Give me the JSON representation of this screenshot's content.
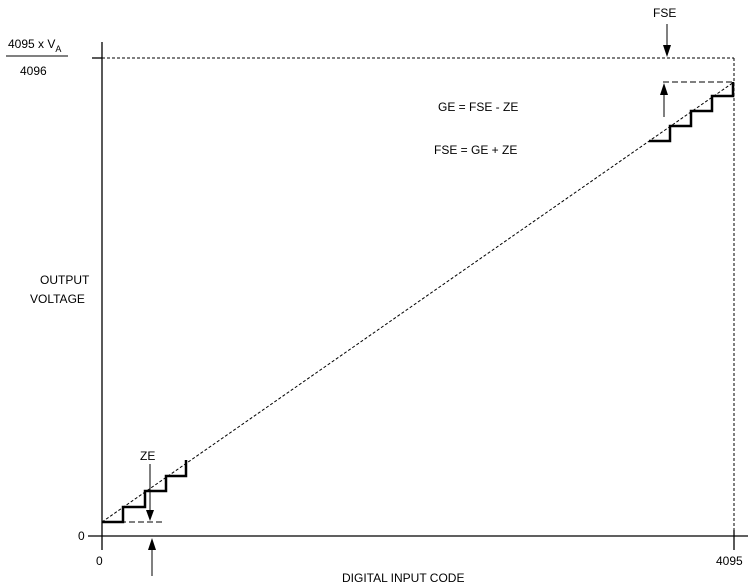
{
  "y_top_label": {
    "numerator": "4095 x V",
    "subscript": "A",
    "denominator": "4096"
  },
  "y_zero_label": "0",
  "y_axis_title": {
    "line1": "OUTPUT",
    "line2": "VOLTAGE"
  },
  "x_zero_label": "0",
  "x_max_label": "4095",
  "x_axis_title": "DIGITAL INPUT CODE",
  "fse_label": "FSE",
  "ze_label": "ZE",
  "equations": {
    "gain_error": "GE = FSE - ZE",
    "full_scale_error": "FSE = GE + ZE"
  },
  "colors": {
    "line": "#000000",
    "background": "#ffffff"
  }
}
